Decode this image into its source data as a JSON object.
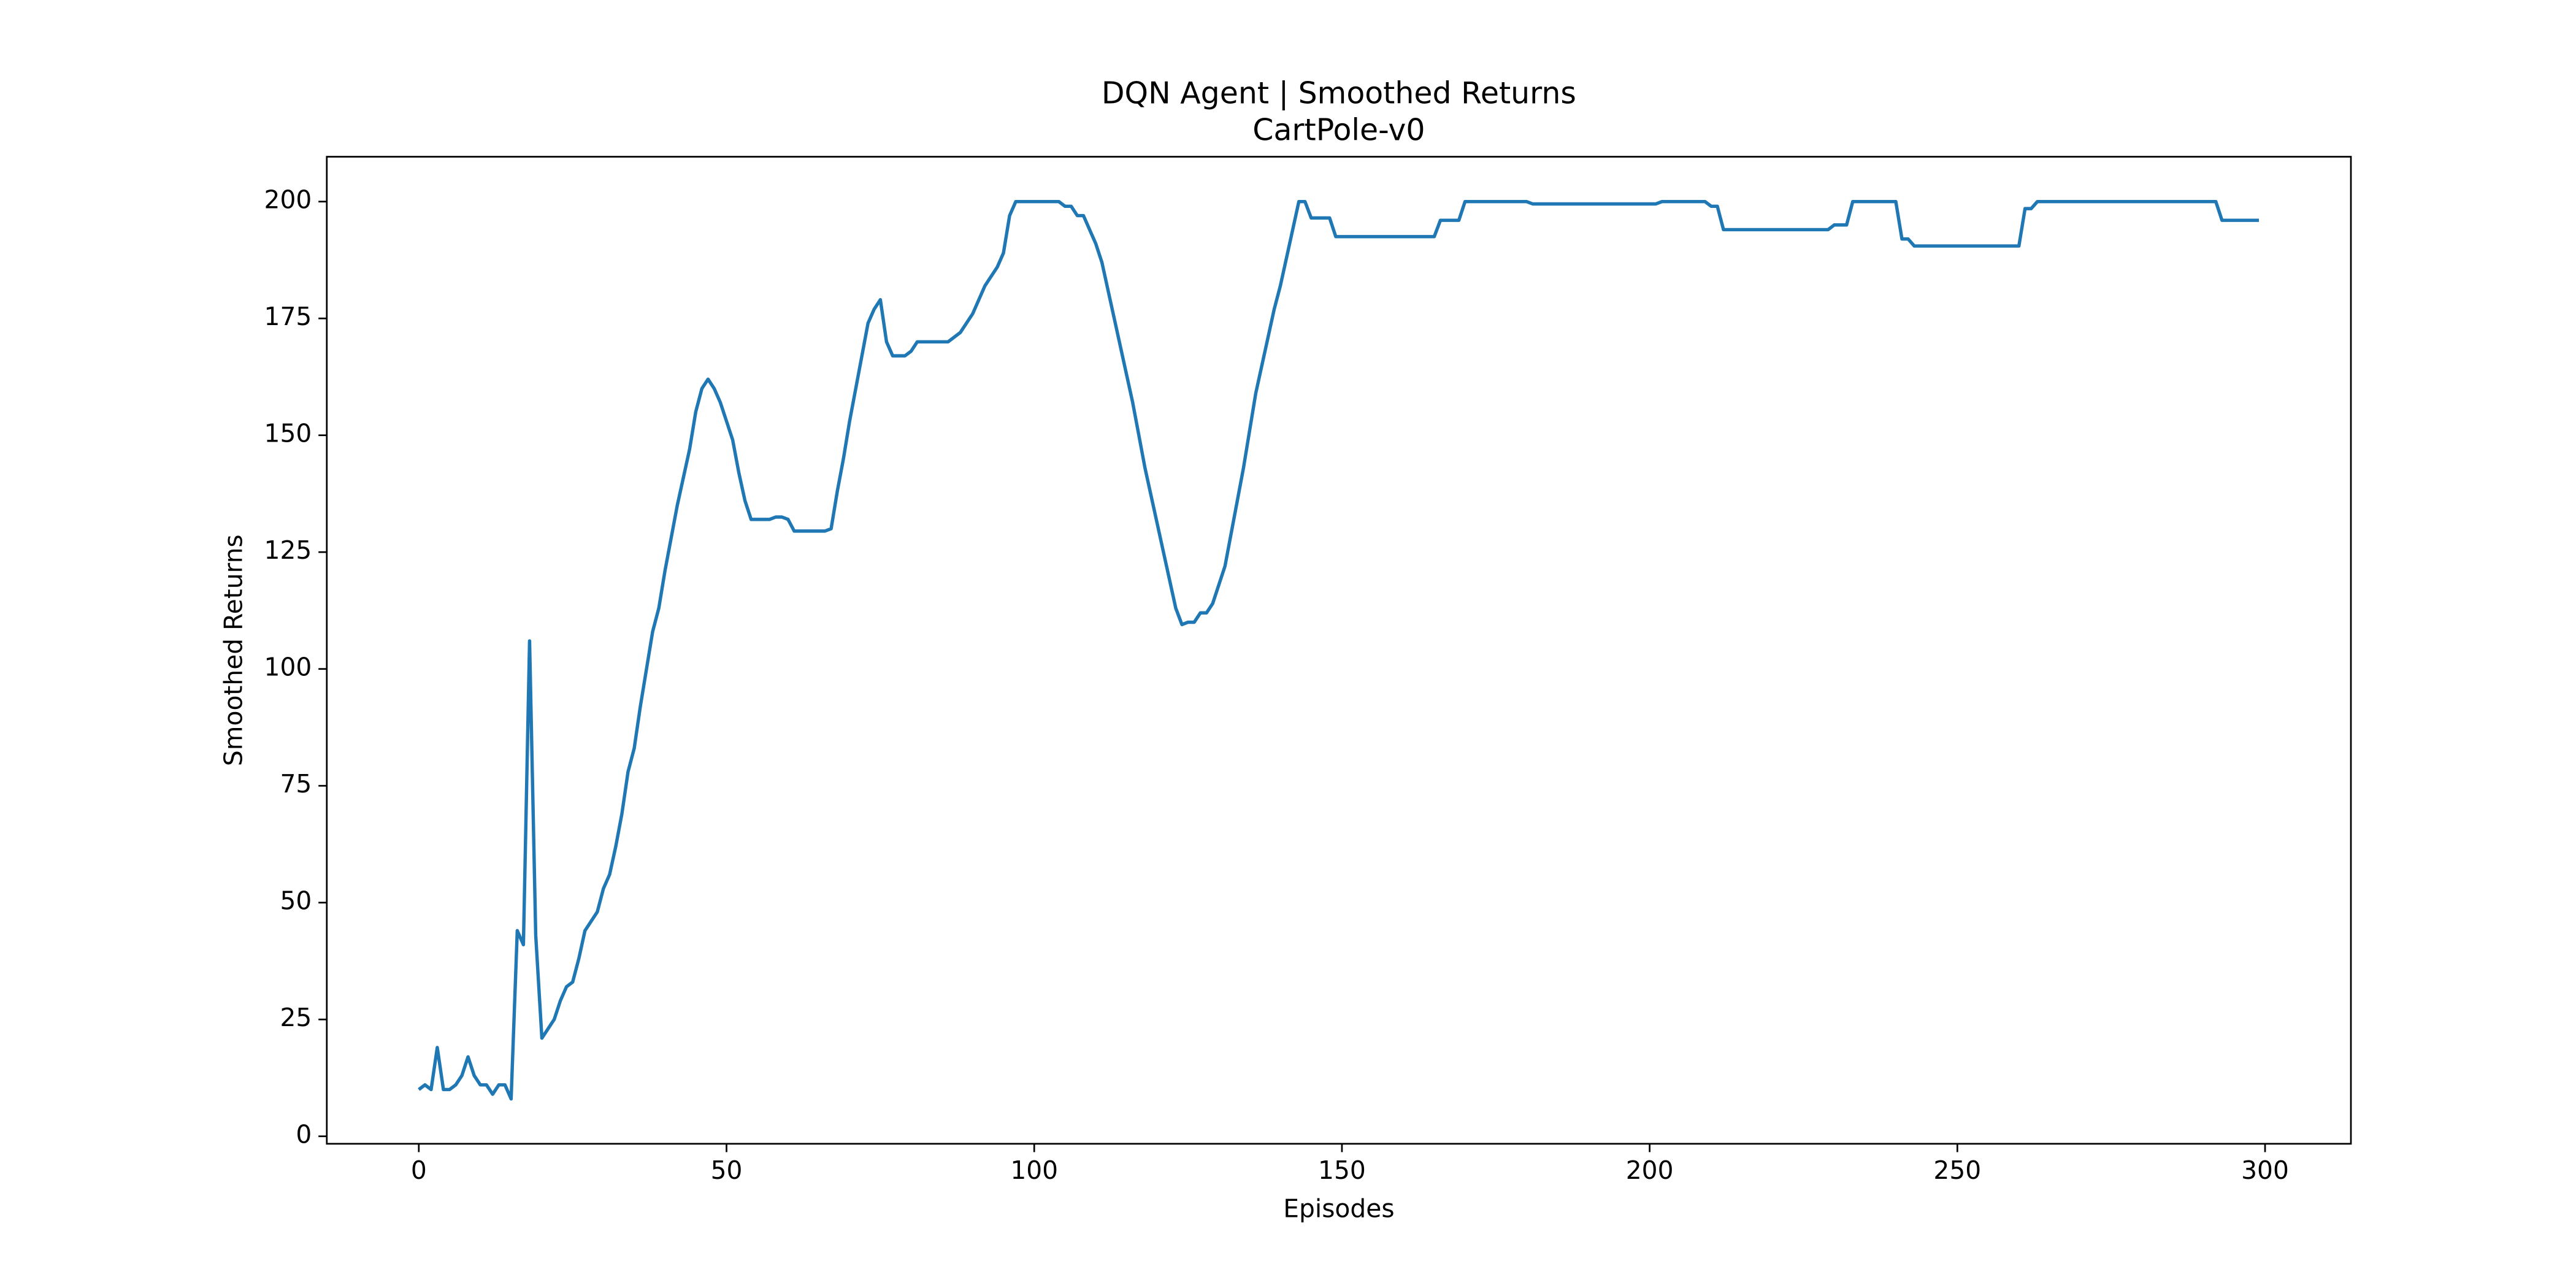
{
  "chart_data": {
    "type": "line",
    "title": "DQN Agent | Smoothed Returns",
    "subtitle": "CartPole-v0",
    "x_label": "Episodes",
    "y_label": "Smoothed Returns",
    "xlim": [
      -14.95,
      313.95
    ],
    "ylim": [
      -1.6,
      209.6
    ],
    "xticks": [
      0,
      50,
      100,
      150,
      200,
      250,
      300
    ],
    "yticks": [
      0,
      25,
      50,
      75,
      100,
      125,
      150,
      175,
      200
    ],
    "grid": false,
    "x": [
      0,
      1,
      2,
      3,
      4,
      5,
      6,
      7,
      8,
      9,
      10,
      11,
      12,
      13,
      14,
      15,
      16,
      17,
      18,
      19,
      20,
      21,
      22,
      23,
      24,
      25,
      26,
      27,
      28,
      29,
      30,
      31,
      32,
      33,
      34,
      35,
      36,
      37,
      38,
      39,
      40,
      41,
      42,
      43,
      44,
      45,
      46,
      47,
      48,
      49,
      50,
      51,
      52,
      53,
      54,
      55,
      56,
      57,
      58,
      59,
      60,
      61,
      62,
      63,
      64,
      65,
      66,
      67,
      68,
      69,
      70,
      71,
      72,
      73,
      74,
      75,
      76,
      77,
      78,
      79,
      80,
      81,
      82,
      83,
      84,
      85,
      86,
      87,
      88,
      89,
      90,
      91,
      92,
      93,
      94,
      95,
      96,
      97,
      98,
      99,
      100,
      101,
      102,
      103,
      104,
      105,
      106,
      107,
      108,
      109,
      110,
      111,
      112,
      113,
      114,
      115,
      116,
      117,
      118,
      119,
      120,
      121,
      122,
      123,
      124,
      125,
      126,
      127,
      128,
      129,
      130,
      131,
      132,
      133,
      134,
      135,
      136,
      137,
      138,
      139,
      140,
      141,
      142,
      143,
      144,
      145,
      146,
      147,
      148,
      149,
      150,
      151,
      152,
      153,
      154,
      155,
      156,
      157,
      158,
      159,
      160,
      161,
      162,
      163,
      164,
      165,
      166,
      167,
      168,
      169,
      170,
      171,
      172,
      173,
      174,
      175,
      176,
      177,
      178,
      179,
      180,
      181,
      182,
      183,
      184,
      185,
      186,
      187,
      188,
      189,
      190,
      191,
      192,
      193,
      194,
      195,
      196,
      197,
      198,
      199,
      200,
      201,
      202,
      203,
      204,
      205,
      206,
      207,
      208,
      209,
      210,
      211,
      212,
      213,
      214,
      215,
      216,
      217,
      218,
      219,
      220,
      221,
      222,
      223,
      224,
      225,
      226,
      227,
      228,
      229,
      230,
      231,
      232,
      233,
      234,
      235,
      236,
      237,
      238,
      239,
      240,
      241,
      242,
      243,
      244,
      245,
      246,
      247,
      248,
      249,
      250,
      251,
      252,
      253,
      254,
      255,
      256,
      257,
      258,
      259,
      260,
      261,
      262,
      263,
      264,
      265,
      266,
      267,
      268,
      269,
      270,
      271,
      272,
      273,
      274,
      275,
      276,
      277,
      278,
      279,
      280,
      281,
      282,
      283,
      284,
      285,
      286,
      287,
      288,
      289,
      290,
      291,
      292,
      293,
      294,
      295,
      296,
      297,
      298,
      299
    ],
    "series": [
      {
        "color": "#1f77b4",
        "values": [
          10,
          11,
          10,
          19,
          10,
          10,
          11,
          13,
          17,
          13,
          11,
          11,
          9,
          11,
          11,
          8,
          44,
          41,
          106,
          43,
          21,
          23,
          25,
          29,
          32,
          33,
          38,
          44,
          46,
          48,
          53,
          56,
          62,
          69,
          78,
          83,
          92,
          100,
          108,
          113,
          121,
          128,
          135,
          141,
          147,
          155,
          160,
          162,
          160,
          157,
          153,
          149,
          142,
          136,
          132,
          132,
          132,
          132,
          132.5,
          132.5,
          132,
          129.5,
          129.5,
          129.5,
          129.5,
          129.5,
          129.5,
          130,
          138,
          145,
          153,
          160,
          167,
          174,
          177,
          179,
          170,
          167,
          167,
          167,
          168,
          170,
          170,
          170,
          170,
          170,
          170,
          171,
          172,
          174,
          176,
          179,
          182,
          184,
          186,
          189,
          197,
          200,
          200,
          200,
          200,
          200,
          200,
          200,
          200,
          199,
          199,
          197,
          197,
          194,
          191,
          187,
          181,
          175,
          169,
          163,
          157,
          150,
          143,
          137,
          131,
          125,
          119,
          113,
          109.5,
          110,
          110,
          112,
          112,
          114,
          118,
          122,
          129,
          136,
          143,
          151,
          159,
          165,
          171,
          177,
          182,
          188,
          194,
          200,
          200,
          196.5,
          196.5,
          196.5,
          196.5,
          192.5,
          192.5,
          192.5,
          192.5,
          192.5,
          192.5,
          192.5,
          192.5,
          192.5,
          192.5,
          192.5,
          192.5,
          192.5,
          192.5,
          192.5,
          192.5,
          192.5,
          196,
          196,
          196,
          196,
          200,
          200,
          200,
          200,
          200,
          200,
          200,
          200,
          200,
          200,
          200,
          199.5,
          199.5,
          199.5,
          199.5,
          199.5,
          199.5,
          199.5,
          199.5,
          199.5,
          199.5,
          199.5,
          199.5,
          199.5,
          199.5,
          199.5,
          199.5,
          199.5,
          199.5,
          199.5,
          199.5,
          199.5,
          200,
          200,
          200,
          200,
          200,
          200,
          200,
          200,
          199,
          199,
          194,
          194,
          194,
          194,
          194,
          194,
          194,
          194,
          194,
          194,
          194,
          194,
          194,
          194,
          194,
          194,
          194,
          194,
          195,
          195,
          195,
          200,
          200,
          200,
          200,
          200,
          200,
          200,
          200,
          192,
          192,
          190.5,
          190.5,
          190.5,
          190.5,
          190.5,
          190.5,
          190.5,
          190.5,
          190.5,
          190.5,
          190.5,
          190.5,
          190.5,
          190.5,
          190.5,
          190.5,
          190.5,
          190.5,
          198.5,
          198.5,
          200,
          200,
          200,
          200,
          200,
          200,
          200,
          200,
          200,
          200,
          200,
          200,
          200,
          200,
          200,
          200,
          200,
          200,
          200,
          200,
          200,
          200,
          200,
          200,
          200,
          200,
          200,
          200,
          200,
          200,
          196,
          196,
          196,
          196,
          196,
          196,
          196
        ]
      }
    ]
  }
}
